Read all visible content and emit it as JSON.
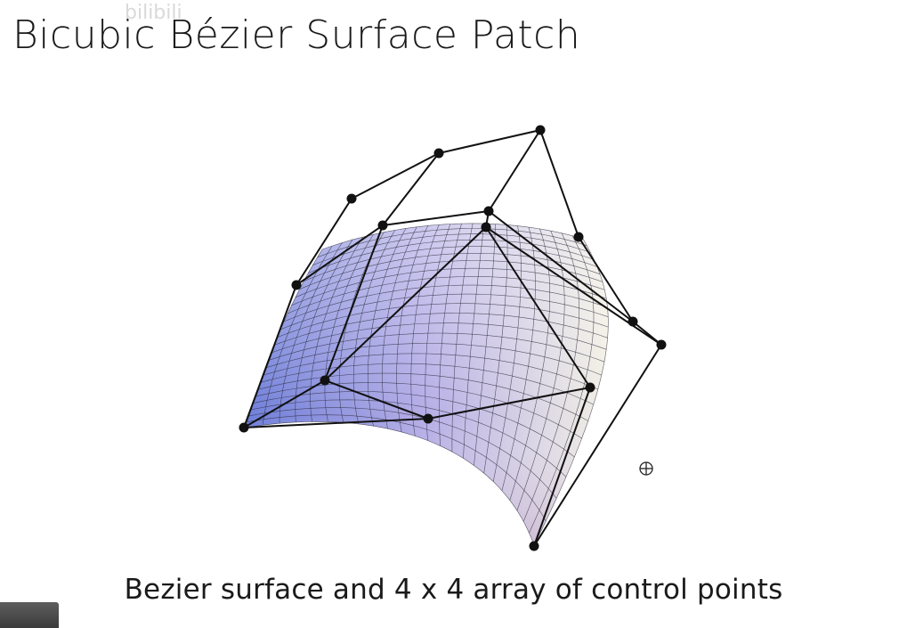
{
  "slide": {
    "title": "Bicubic Bézier Surface Patch",
    "caption": "Bezier surface and 4 x 4 array of control points",
    "watermark": "bilibili"
  },
  "diagram": {
    "grid_size": [
      4,
      4
    ],
    "surface_colors": {
      "left": "#6f7fd9",
      "middle": "#b6aee6",
      "right": "#f3f0e4",
      "front": "#c8a6c8"
    },
    "line_color": "#111111",
    "icons": [
      "crosshair-cursor-icon"
    ]
  }
}
